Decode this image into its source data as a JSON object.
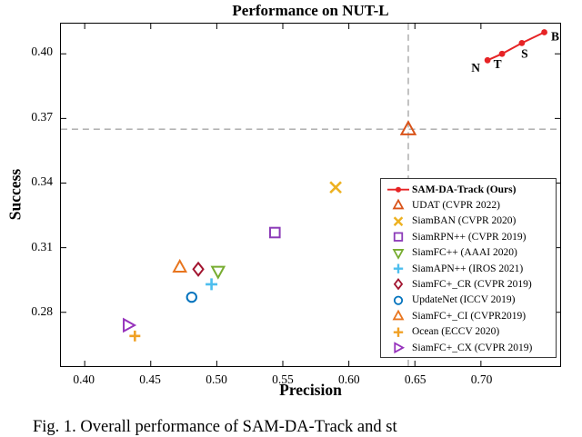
{
  "figure": {
    "caption": "Fig. 1.  Overall performance of SAM-DA-Track and st"
  },
  "chart_data": {
    "type": "scatter",
    "title": "Performance on NUT-L",
    "xlabel": "Precision",
    "ylabel": "Success",
    "xlim": [
      0.382,
      0.76
    ],
    "ylim": [
      0.255,
      0.414
    ],
    "xticks": [
      0.4,
      0.45,
      0.5,
      0.55,
      0.6,
      0.65,
      0.7
    ],
    "yticks": [
      0.28,
      0.31,
      0.34,
      0.37,
      0.4
    ],
    "grid": false,
    "legend_position": "lower-right-inside",
    "reference_lines": {
      "x": 0.645,
      "y": 0.365,
      "style": "dashed",
      "color": "#a8a8a8"
    },
    "main_series": {
      "name": "SAM-DA-Track (Ours)",
      "color": "#e62325",
      "marker": "line-dot",
      "points": [
        {
          "label": "N",
          "x": 0.705,
          "y": 0.397
        },
        {
          "label": "T",
          "x": 0.716,
          "y": 0.4
        },
        {
          "label": "S",
          "x": 0.731,
          "y": 0.405
        },
        {
          "label": "B",
          "x": 0.748,
          "y": 0.41
        }
      ]
    },
    "series": [
      {
        "name": "UDAT (CVPR 2022)",
        "marker": "triangle-up",
        "color": "#d95319",
        "x": 0.645,
        "y": 0.365,
        "size": 8
      },
      {
        "name": "SiamBAN (CVPR 2020)",
        "marker": "x",
        "color": "#edb120",
        "x": 0.59,
        "y": 0.338,
        "size": 7
      },
      {
        "name": "SiamRPN++ (CVPR 2019)",
        "marker": "square",
        "color": "#8c3bb8",
        "x": 0.544,
        "y": 0.317,
        "size": 6.5
      },
      {
        "name": "SiamFC++ (AAAI 2020)",
        "marker": "triangle-down",
        "color": "#77ac30",
        "x": 0.501,
        "y": 0.299,
        "size": 7
      },
      {
        "name": "SiamAPN++ (IROS 2021)",
        "marker": "plus",
        "color": "#4dbeee",
        "x": 0.496,
        "y": 0.293,
        "size": 6.5
      },
      {
        "name": "SiamFC+_CR (CVPR 2019)",
        "marker": "diamond",
        "color": "#a2142f",
        "x": 0.486,
        "y": 0.3,
        "size": 7
      },
      {
        "name": "UpdateNet (ICCV 2019)",
        "marker": "circle",
        "color": "#0072bd",
        "x": 0.481,
        "y": 0.287,
        "size": 6.5
      },
      {
        "name": "SiamFC+_CI (CVPR2019)",
        "marker": "triangle-up",
        "color": "#e8751e",
        "x": 0.472,
        "y": 0.301,
        "size": 7
      },
      {
        "name": "Ocean (ECCV 2020)",
        "marker": "plus",
        "color": "#f0a125",
        "x": 0.438,
        "y": 0.269,
        "size": 6
      },
      {
        "name": "SiamFC+_CX (CVPR 2019)",
        "marker": "triangle-right",
        "color": "#9632bc",
        "x": 0.433,
        "y": 0.274,
        "size": 7
      }
    ]
  }
}
